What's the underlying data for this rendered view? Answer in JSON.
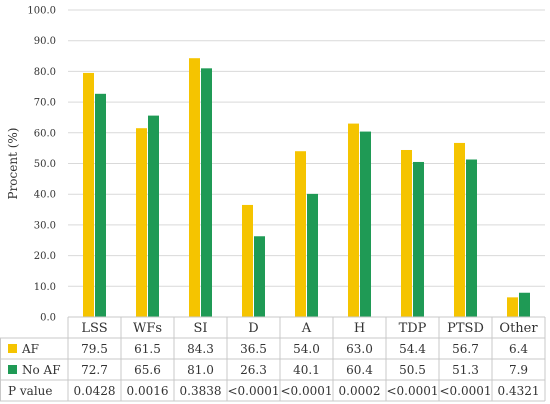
{
  "chart_data": {
    "type": "bar",
    "ylabel": "Procent (%)",
    "ylim": [
      0,
      100
    ],
    "yticks": [
      "0.0",
      "10.0",
      "20.0",
      "30.0",
      "40.0",
      "50.0",
      "60.0",
      "70.0",
      "80.0",
      "90.0",
      "100.0"
    ],
    "categories": [
      "LSS",
      "WFs",
      "SI",
      "D",
      "A",
      "H",
      "TDP",
      "PTSD",
      "Other"
    ],
    "series": [
      {
        "name": "AF",
        "color": "#f5c400",
        "values": [
          79.5,
          61.5,
          84.3,
          36.5,
          54.0,
          63.0,
          54.4,
          56.7,
          6.4
        ],
        "labels": [
          "79.5",
          "61.5",
          "84.3",
          "36.5",
          "54.0",
          "63.0",
          "54.4",
          "56.7",
          "6.4"
        ]
      },
      {
        "name": "No AF",
        "color": "#1f9a55",
        "values": [
          72.7,
          65.6,
          81.0,
          26.3,
          40.1,
          60.4,
          50.5,
          51.3,
          7.9
        ],
        "labels": [
          "72.7",
          "65.6",
          "81.0",
          "26.3",
          "40.1",
          "60.4",
          "50.5",
          "51.3",
          "7.9"
        ]
      }
    ],
    "pvalue_row": {
      "label": "P value",
      "values": [
        "0.0428",
        "0.0016",
        "0.3838",
        "<0.0001",
        "<0.0001",
        "0.0002",
        "<0.0001",
        "<0.0001",
        "0.4321"
      ]
    },
    "grid": true,
    "legend": "table-rows"
  }
}
